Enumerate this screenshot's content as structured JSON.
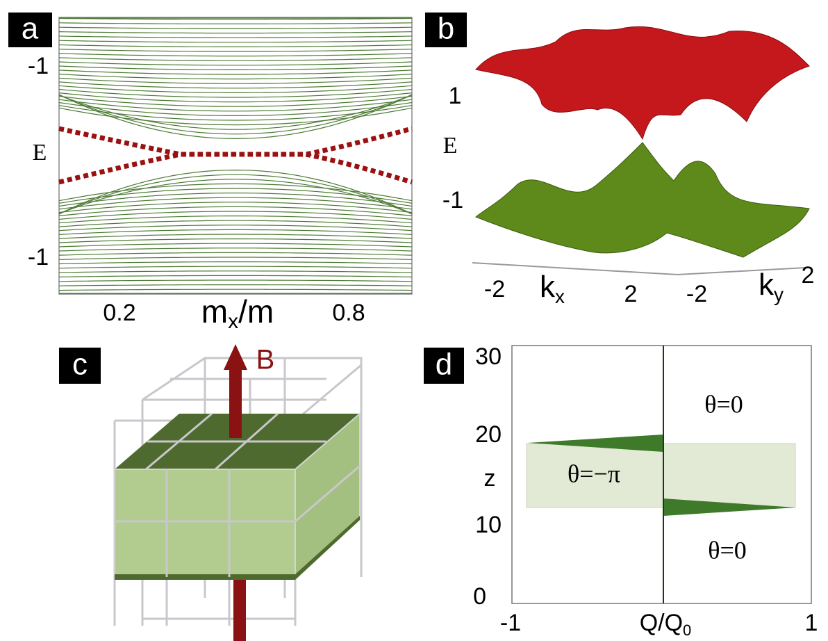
{
  "panels": [
    {
      "label": "a",
      "y_tick_labels": [
        "-1",
        "-1"
      ],
      "y_label": "E",
      "x_tick_labels": [
        "0.2",
        "0.8"
      ],
      "x_label": "m",
      "x_label_sub": "x",
      "x_label_rest": "/m"
    },
    {
      "label": "b",
      "y_tick_labels": [
        "1",
        "-1"
      ],
      "y_label": "E",
      "kx_tick_labels": [
        "-2",
        "2"
      ],
      "kx_label": "k",
      "kx_label_sub": "x",
      "ky_tick_labels": [
        "-2",
        "2"
      ],
      "ky_label": "k",
      "ky_label_sub": "y"
    },
    {
      "label": "c",
      "arrow_label": "B"
    },
    {
      "label": "d",
      "y_tick_labels": [
        "0",
        "10",
        "20",
        "30"
      ],
      "y_label": "z",
      "x_tick_labels": [
        "-1",
        "1"
      ],
      "x_label": "Q/Q",
      "x_label_sub": "0",
      "regions": [
        "θ=0",
        "θ=−π",
        "θ=0"
      ]
    }
  ]
}
